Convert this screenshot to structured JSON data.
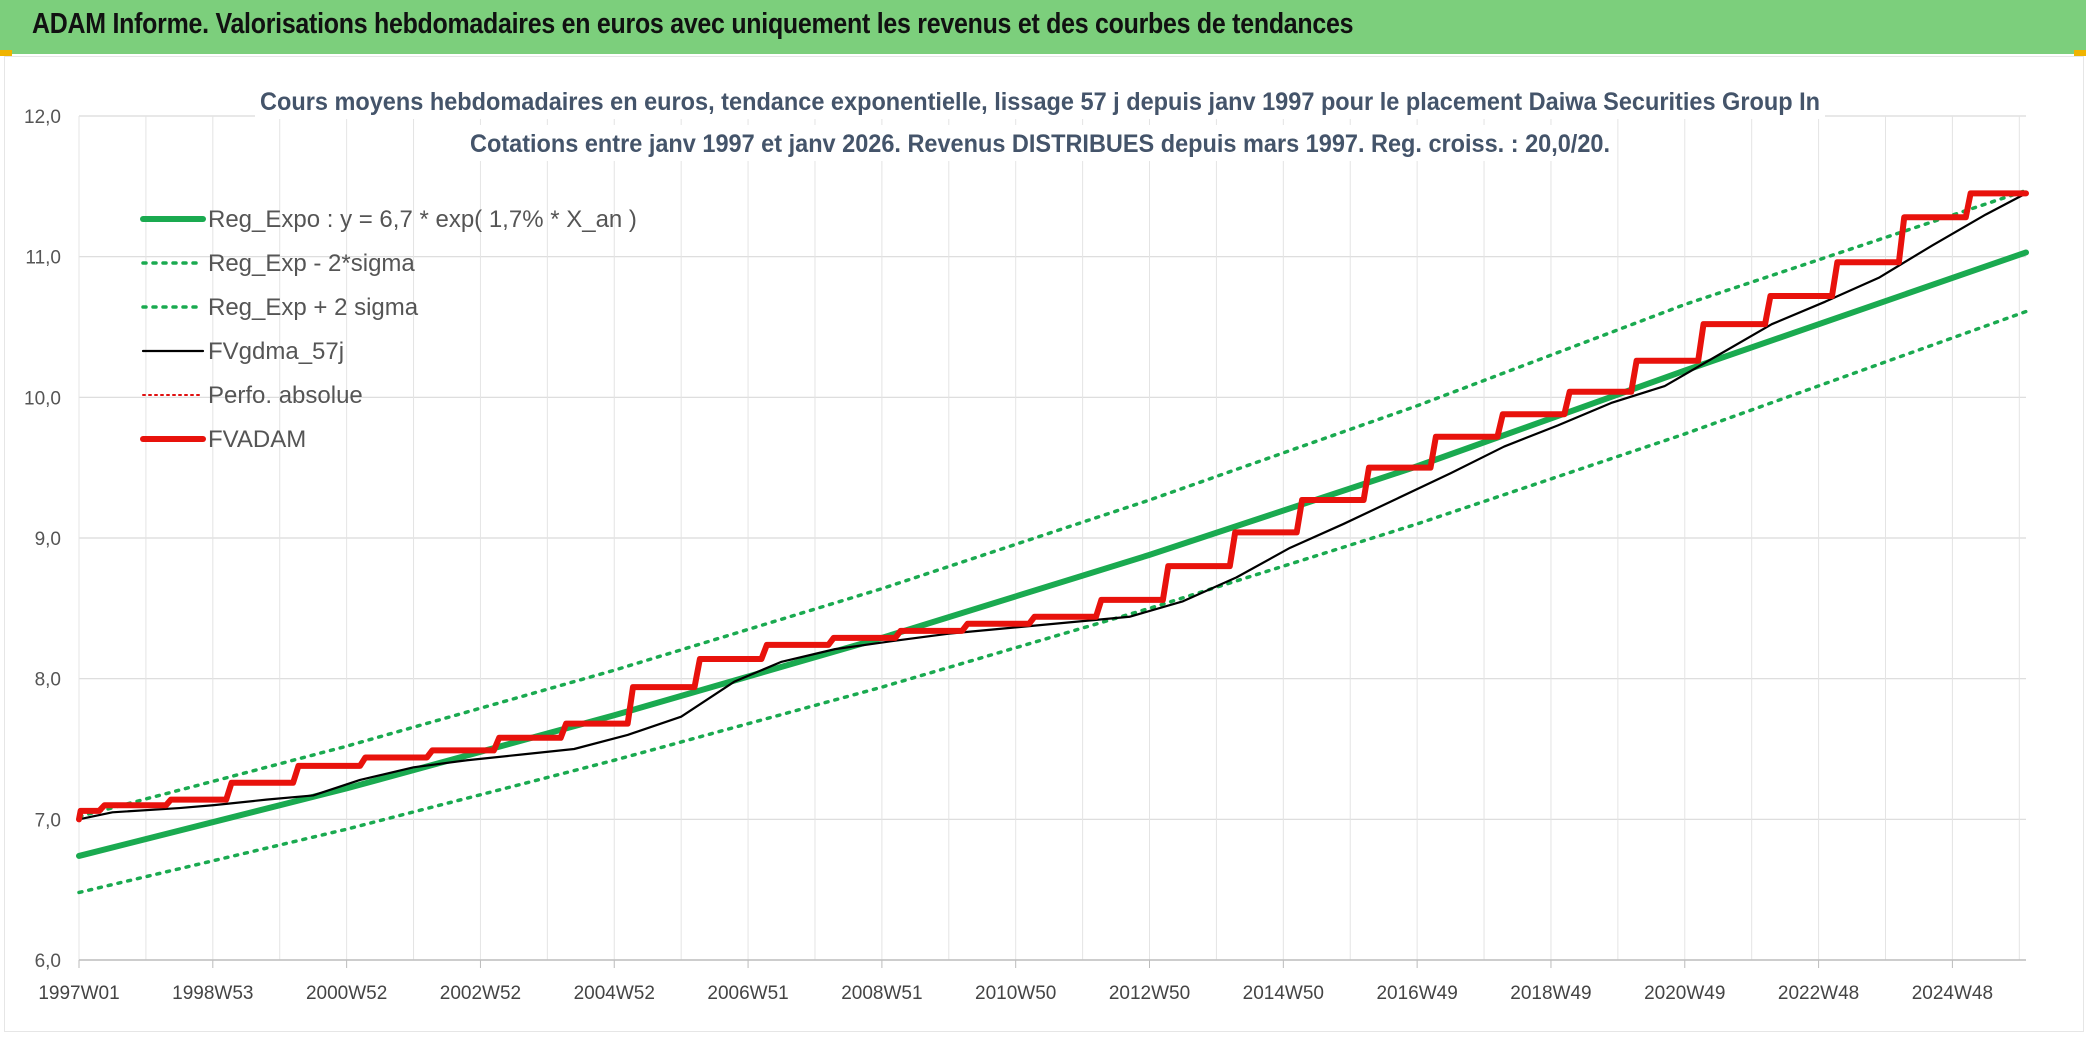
{
  "banner": {
    "title": "ADAM Informe. Valorisations hebdomadaires en euros avec uniquement les revenus et des courbes de tendances"
  },
  "colors": {
    "banner_bg": "#7ccf7c",
    "accent_corner": "#f0b400",
    "reg": "#1aaa50",
    "fvgdma": "#000000",
    "perfo": "#e01010",
    "fvadam": "#e8120c"
  },
  "chart_data": {
    "type": "line",
    "title_line1": "Cours moyens hebdomadaires en euros, tendance exponentielle, lissage 57 j depuis janv 1997 pour le placement Daiwa Securities Group In",
    "title_line2": "Cotations entre janv 1997 et janv 2026. Revenus DISTRIBUES depuis mars 1997. Reg. croiss. : 20,0/20.",
    "ylim": [
      6.0,
      12.0
    ],
    "yticks": [
      "6,0",
      "7,0",
      "8,0",
      "9,0",
      "10,0",
      "11,0",
      "12,0"
    ],
    "xlim_years": [
      1997.0,
      2026.1
    ],
    "xticks": [
      "1997W01",
      "1998W53",
      "2000W52",
      "2002W52",
      "2004W52",
      "2006W51",
      "2008W51",
      "2010W50",
      "2012W50",
      "2014W50",
      "2016W49",
      "2018W49",
      "2020W49",
      "2022W48",
      "2024W48"
    ],
    "grid": true,
    "legend_position": "top-left",
    "series": [
      {
        "name": "Reg_Expo : y = 6,7 * exp( 1,7% *  X_an )",
        "style": "solid-thick",
        "color": "#1aaa50",
        "x": [
          1997,
          2001,
          2005,
          2009,
          2013,
          2017,
          2021,
          2026.1
        ],
        "y": [
          6.74,
          7.22,
          7.74,
          8.29,
          8.88,
          9.51,
          10.19,
          11.03
        ]
      },
      {
        "name": "Reg_Exp - 2*sigma",
        "style": "dotted",
        "color": "#1aaa50",
        "x": [
          1997,
          2001,
          2005,
          2009,
          2013,
          2017,
          2021,
          2026.1
        ],
        "y": [
          6.48,
          6.93,
          7.42,
          7.94,
          8.5,
          9.1,
          9.74,
          10.61
        ]
      },
      {
        "name": "Reg_Exp + 2 sigma",
        "style": "dotted",
        "color": "#1aaa50",
        "x": [
          1997,
          2001,
          2005,
          2009,
          2013,
          2017,
          2021,
          2026.1
        ],
        "y": [
          7.02,
          7.52,
          8.06,
          8.64,
          9.27,
          9.94,
          10.66,
          11.47
        ]
      },
      {
        "name": "FVgdma_57j",
        "style": "solid-thin",
        "color": "#000000",
        "x": [
          1997,
          1997.5,
          1998.5,
          1999,
          1999.8,
          2000.5,
          2001.2,
          2002,
          2002.8,
          2003.6,
          2004.4,
          2005.2,
          2006,
          2006.8,
          2007.5,
          2008.3,
          2009.2,
          2010,
          2010.9,
          2011.8,
          2012.7,
          2013.5,
          2014.3,
          2015.1,
          2015.9,
          2016.7,
          2017.5,
          2018.3,
          2019.1,
          2019.9,
          2020.7,
          2021.5,
          2022.3,
          2023.1,
          2023.9,
          2024.7,
          2025.5,
          2026.1
        ],
        "y": [
          7.0,
          7.05,
          7.08,
          7.1,
          7.14,
          7.17,
          7.28,
          7.37,
          7.42,
          7.46,
          7.5,
          7.6,
          7.73,
          7.98,
          8.12,
          8.21,
          8.27,
          8.32,
          8.36,
          8.4,
          8.44,
          8.55,
          8.72,
          8.93,
          9.1,
          9.28,
          9.46,
          9.65,
          9.8,
          9.96,
          10.08,
          10.3,
          10.52,
          10.68,
          10.85,
          11.08,
          11.3,
          11.45
        ]
      },
      {
        "name": "Perfo. absolue",
        "style": "dotted-thin",
        "color": "#e01010",
        "x": [
          1997,
          2026.1
        ],
        "y": [
          7.0,
          11.45
        ]
      },
      {
        "name": "FVADAM",
        "style": "step-thick",
        "color": "#e8120c",
        "x": [
          1997,
          1997.3,
          1998.3,
          1999.2,
          2000.2,
          2001.2,
          2002.2,
          2003.2,
          2004.2,
          2005.2,
          2006.2,
          2007.2,
          2008.2,
          2009.2,
          2010.2,
          2011.2,
          2012.2,
          2013.2,
          2014.2,
          2015.2,
          2016.2,
          2017.2,
          2018.2,
          2019.2,
          2020.2,
          2021.2,
          2022.2,
          2023.2,
          2024.2,
          2025.2,
          2026.1
        ],
        "y": [
          7.0,
          7.06,
          7.1,
          7.14,
          7.26,
          7.38,
          7.44,
          7.49,
          7.58,
          7.68,
          7.94,
          8.14,
          8.24,
          8.29,
          8.34,
          8.39,
          8.44,
          8.56,
          8.8,
          9.04,
          9.27,
          9.5,
          9.72,
          9.88,
          10.04,
          10.26,
          10.52,
          10.72,
          10.96,
          11.28,
          11.45
        ]
      }
    ]
  }
}
